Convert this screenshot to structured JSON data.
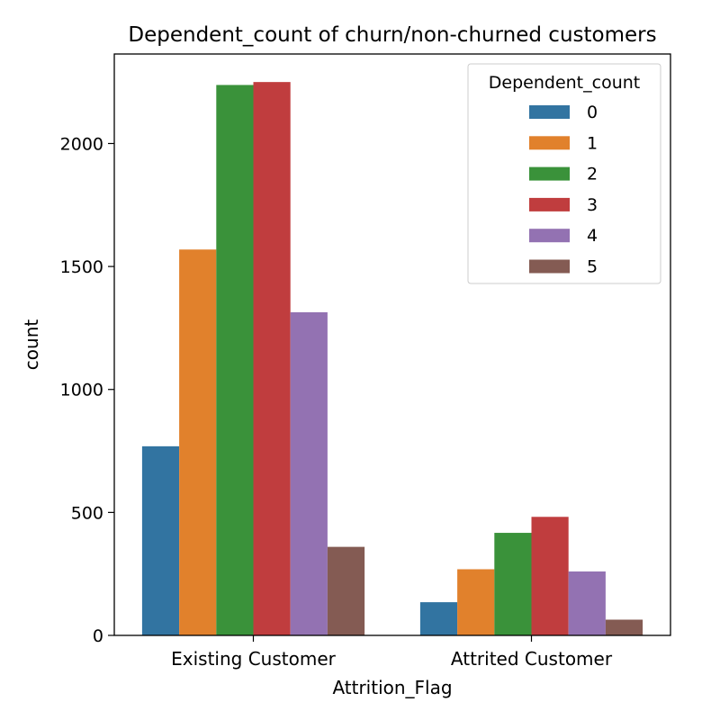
{
  "chart_data": {
    "type": "bar",
    "title": "Dependent_count of churn/non-churned customers",
    "xlabel": "Attrition_Flag",
    "ylabel": "count",
    "ylim": [
      0,
      2364
    ],
    "yticks": [
      0,
      500,
      1000,
      1500,
      2000
    ],
    "categories": [
      "Existing Customer",
      "Attrited Customer"
    ],
    "legend": {
      "title": "Dependent_count",
      "placement": "top-right"
    },
    "grid": false,
    "series": [
      {
        "name": "0",
        "color": "#3274a1",
        "values": [
          769,
          135
        ]
      },
      {
        "name": "1",
        "color": "#e1812c",
        "values": [
          1569,
          269
        ]
      },
      {
        "name": "2",
        "color": "#3a923a",
        "values": [
          2238,
          417
        ]
      },
      {
        "name": "3",
        "color": "#c03d3e",
        "values": [
          2250,
          482
        ]
      },
      {
        "name": "4",
        "color": "#9372b2",
        "values": [
          1314,
          260
        ]
      },
      {
        "name": "5",
        "color": "#845b53",
        "values": [
          360,
          64
        ]
      }
    ]
  }
}
